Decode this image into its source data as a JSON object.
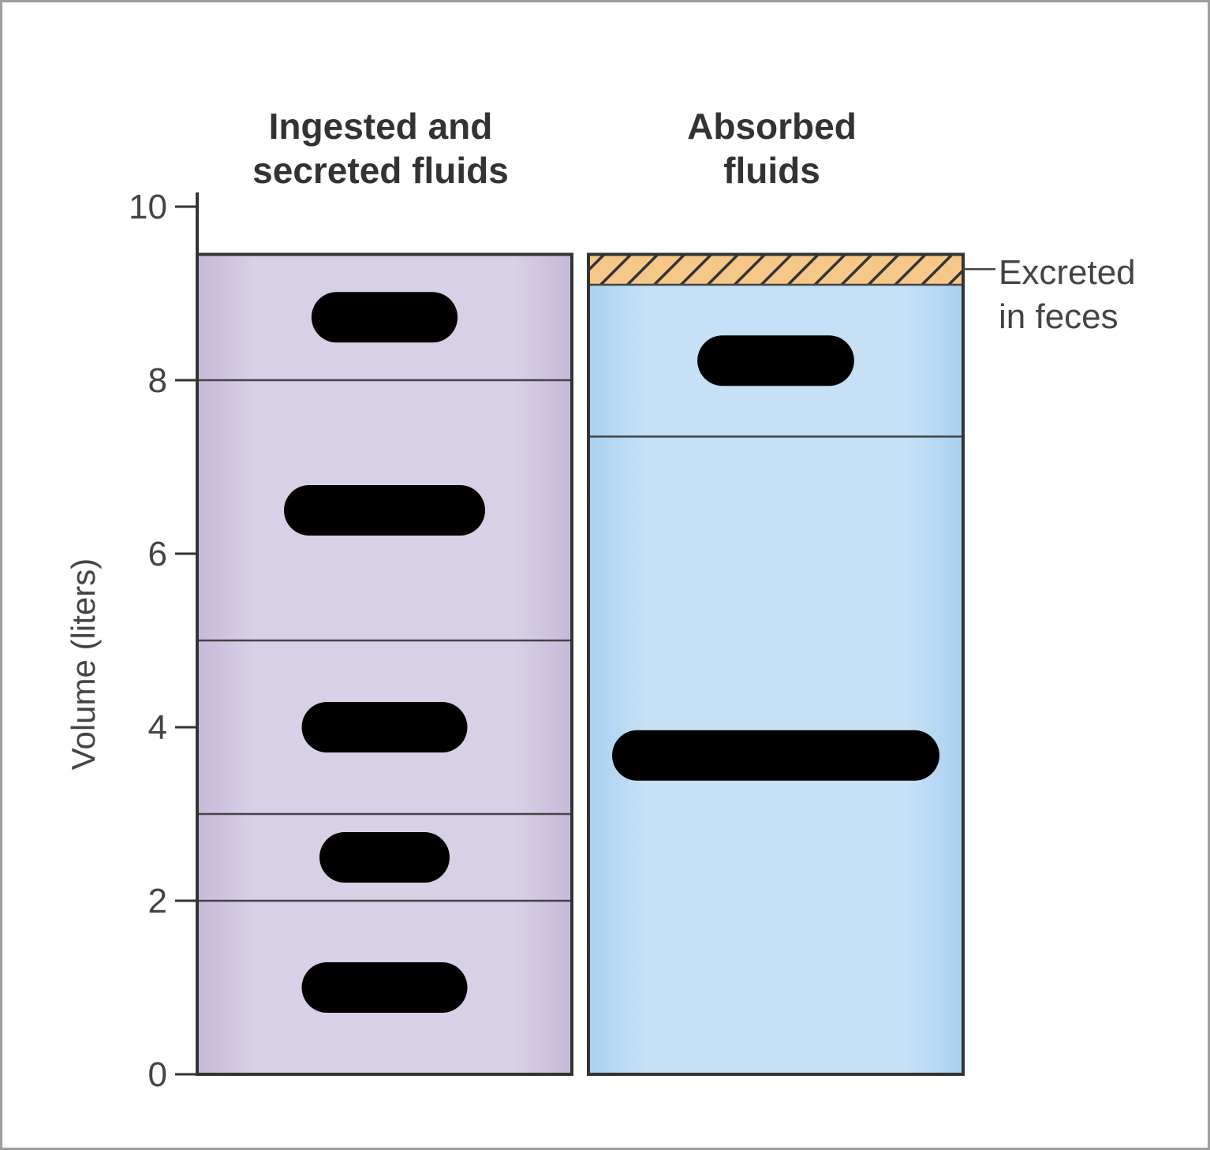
{
  "chart_data": {
    "type": "bar",
    "stacked": true,
    "ylabel": "Volume (liters)",
    "ylim": [
      0,
      10
    ],
    "yticks": [
      "0",
      "2",
      "4",
      "6",
      "8",
      "10"
    ],
    "columns": [
      {
        "title_lines": [
          "Ingested and",
          "secreted fluids"
        ],
        "color": "#d8d0e6",
        "segments": [
          {
            "from": 0,
            "to": 2,
            "label": "redacted"
          },
          {
            "from": 2,
            "to": 3,
            "label": "redacted"
          },
          {
            "from": 3,
            "to": 5,
            "label": "redacted"
          },
          {
            "from": 5,
            "to": 8,
            "label": "redacted"
          },
          {
            "from": 8,
            "to": 9.45,
            "label": "redacted"
          }
        ],
        "total": 9.45
      },
      {
        "title_lines": [
          "Absorbed",
          "fluids"
        ],
        "color": "#c6e0f5",
        "segments": [
          {
            "from": 0,
            "to": 7.35,
            "label": "redacted"
          },
          {
            "from": 7.35,
            "to": 9.1,
            "label": "redacted"
          },
          {
            "from": 9.1,
            "to": 9.45,
            "label": "Excreted in feces",
            "pattern": "hatched",
            "color": "#f5c88a"
          }
        ],
        "total": 9.45
      }
    ],
    "annotation_lines": [
      "Excreted",
      "in feces"
    ],
    "grid": false,
    "legend": "none"
  }
}
